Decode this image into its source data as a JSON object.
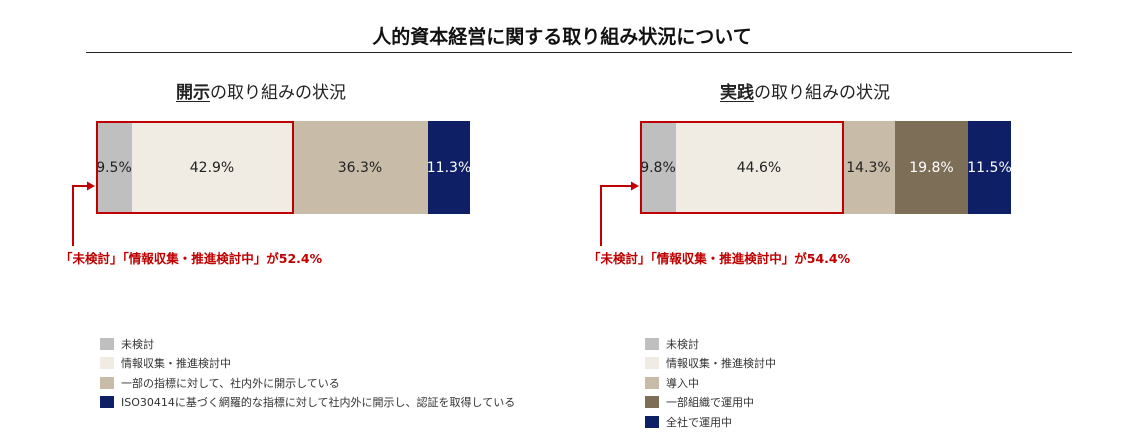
{
  "page_title": "人的資本経営に関する取り組み状況について",
  "chart_data": [
    {
      "type": "bar",
      "orientation": "horizontal-stacked-100",
      "title_keyword": "開示",
      "title_rest": "の取り組みの状況",
      "series": [
        {
          "name": "未検討",
          "value": 9.5,
          "label": "9.5%",
          "color": "#bfbfbf",
          "text_color": "dark"
        },
        {
          "name": "情報収集・推進検討中",
          "value": 42.9,
          "label": "42.9%",
          "color": "#f0ece4",
          "text_color": "dark"
        },
        {
          "name": "一部の指標に対して、社内外に開示している",
          "value": 36.3,
          "label": "36.3%",
          "color": "#c8bca8",
          "text_color": "dark"
        },
        {
          "name": "ISO30414に基づく網羅的な指標に対して社内外に開示し、認証を取得している",
          "value": 11.3,
          "label": "11.3%",
          "color": "#0e1f66",
          "text_color": "light"
        }
      ],
      "highlight_count": 2,
      "callout": "「未検討」「情報収集・推進検討中」が52.4%"
    },
    {
      "type": "bar",
      "orientation": "horizontal-stacked-100",
      "title_keyword": "実践",
      "title_rest": "の取り組みの状況",
      "series": [
        {
          "name": "未検討",
          "value": 9.8,
          "label": "9.8%",
          "color": "#bfbfbf",
          "text_color": "dark"
        },
        {
          "name": "情報収集・推進検討中",
          "value": 44.6,
          "label": "44.6%",
          "color": "#f0ece4",
          "text_color": "dark"
        },
        {
          "name": "導入中",
          "value": 14.3,
          "label": "14.3%",
          "color": "#c8bca8",
          "text_color": "dark"
        },
        {
          "name": "一部組織で運用中",
          "value": 19.8,
          "label": "19.8%",
          "color": "#7d6e58",
          "text_color": "light"
        },
        {
          "name": "全社で運用中",
          "value": 11.5,
          "label": "11.5%",
          "color": "#0e1f66",
          "text_color": "light"
        }
      ],
      "highlight_count": 2,
      "callout": "「未検討」「情報収集・推進検討中」が54.4%"
    }
  ]
}
